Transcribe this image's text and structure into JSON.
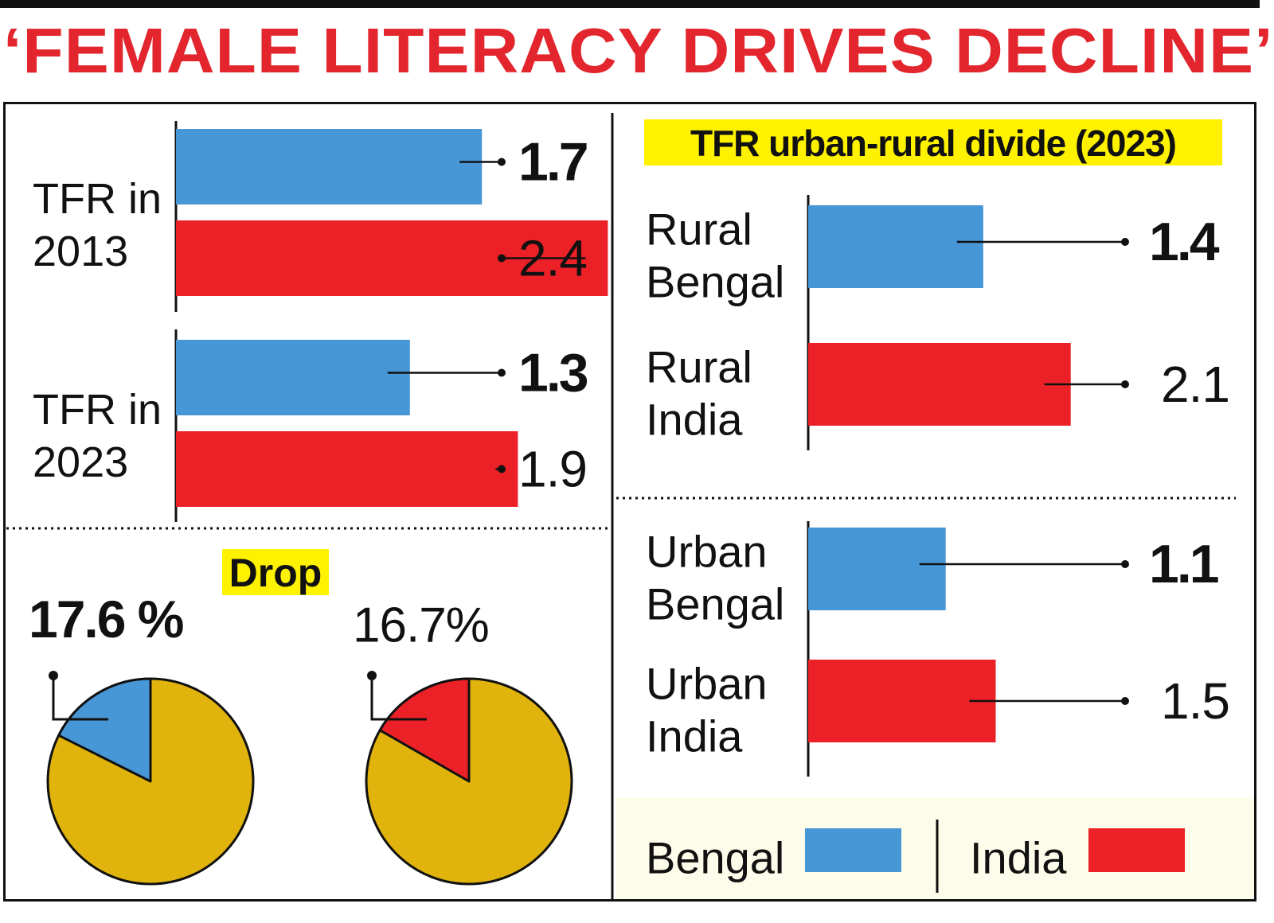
{
  "headline": "‘FEMALE LITERACY DRIVES DECLINE’",
  "colors": {
    "bengal": "#4796d6",
    "india": "#ec2027",
    "pie_rest": "#e1b40d",
    "highlight": "#fff200",
    "title_red": "#e3262e"
  },
  "chart_data": [
    {
      "type": "bar",
      "orientation": "horizontal",
      "groups": [
        {
          "label_lines": [
            "TFR in",
            "2013"
          ],
          "bars": [
            {
              "series": "Bengal",
              "value": 1.7,
              "label": "1.7"
            },
            {
              "series": "India",
              "value": 2.4,
              "label": "2.4"
            }
          ]
        },
        {
          "label_lines": [
            "TFR in",
            "2023"
          ],
          "bars": [
            {
              "series": "Bengal",
              "value": 1.3,
              "label": "1.3"
            },
            {
              "series": "India",
              "value": 1.9,
              "label": "1.9"
            }
          ]
        }
      ]
    },
    {
      "type": "pie",
      "title": "Drop",
      "pies": [
        {
          "series": "Bengal",
          "value": 17.6,
          "label": "17.6 %"
        },
        {
          "series": "India",
          "value": 16.7,
          "label": "16.7%"
        }
      ]
    },
    {
      "type": "bar",
      "orientation": "horizontal",
      "title": "TFR urban-rural divide (2023)",
      "panels": [
        {
          "bars": [
            {
              "label_lines": [
                "Rural",
                "Bengal"
              ],
              "series": "Bengal",
              "value": 1.4,
              "label": "1.4"
            },
            {
              "label_lines": [
                "Rural",
                "India"
              ],
              "series": "India",
              "value": 2.1,
              "label": "2.1"
            }
          ]
        },
        {
          "bars": [
            {
              "label_lines": [
                "Urban",
                "Bengal"
              ],
              "series": "Bengal",
              "value": 1.1,
              "label": "1.1"
            },
            {
              "label_lines": [
                "Urban",
                "India"
              ],
              "series": "India",
              "value": 1.5,
              "label": "1.5"
            }
          ]
        }
      ]
    }
  ],
  "legend": {
    "entries": [
      {
        "label": "Bengal",
        "series": "Bengal"
      },
      {
        "label": "India",
        "series": "India"
      }
    ]
  }
}
